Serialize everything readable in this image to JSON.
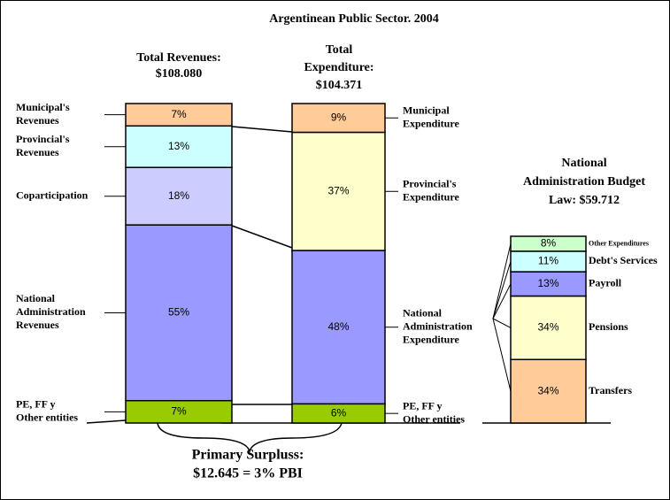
{
  "chart_data": {
    "type": "stacked_bar",
    "title": "Argentinean Public Sector. 2004",
    "columns": [
      {
        "title": [
          "Total Revenues:",
          "$108.080"
        ],
        "categories": [
          [
            "PE, FF y",
            "Other entities"
          ],
          [
            "National",
            "Administration",
            "Revenues"
          ],
          [
            "Coparticipation"
          ],
          [
            "Provincial's",
            "Revenues"
          ],
          [
            "Municipal's",
            "Revenues"
          ]
        ],
        "values": [
          7,
          55,
          18,
          13,
          7
        ],
        "value_labels": [
          "7%",
          "55%",
          "18%",
          "13%",
          "7%"
        ],
        "colors": [
          "#99cc00",
          "#9999ff",
          "#ccccff",
          "#ccffff",
          "#ffcc99"
        ]
      },
      {
        "title": [
          "Total",
          "Expenditure:",
          "$104.371"
        ],
        "categories": [
          [
            "PE, FF y",
            "Other entities"
          ],
          [
            "National",
            "Administration",
            "Expenditure"
          ],
          [
            "Provincial's",
            "Expenditure"
          ],
          [
            "Municipal",
            "Expenditure"
          ]
        ],
        "values": [
          6,
          48,
          37,
          9
        ],
        "value_labels": [
          "6%",
          "48%",
          "37%",
          "9%"
        ],
        "colors": [
          "#99cc00",
          "#9999ff",
          "#ffffcc",
          "#ffcc99"
        ]
      },
      {
        "title": [
          "National",
          "Administration Budget",
          "Law: $59.712"
        ],
        "categories": [
          [
            "Transfers"
          ],
          [
            "Pensions"
          ],
          [
            "Payroll"
          ],
          [
            "Debt's Services"
          ],
          [
            "Other Expenditures"
          ]
        ],
        "values": [
          34,
          34,
          13,
          11,
          8
        ],
        "value_labels": [
          "34%",
          "34%",
          "13%",
          "11%",
          "8%"
        ],
        "colors": [
          "#ffcc99",
          "#ffffcc",
          "#9999ff",
          "#ccffff",
          "#ccffcc"
        ]
      }
    ],
    "annotation": [
      "Primary Surpluss:",
      "$12.645 = 3% PBI"
    ]
  }
}
